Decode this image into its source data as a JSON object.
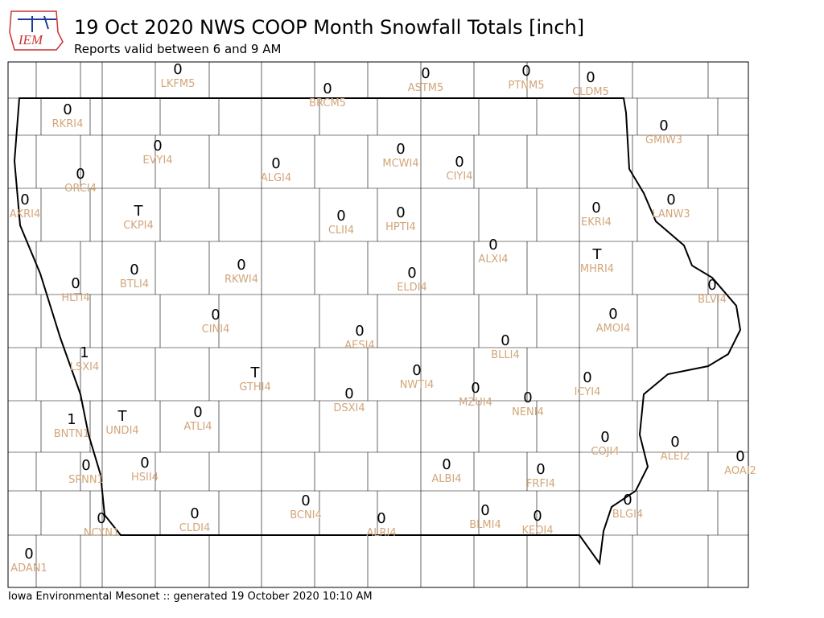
{
  "header": {
    "logo": "IEM",
    "title": "19 Oct 2020 NWS COOP Month Snowfall Totals [inch]",
    "subtitle": "Reports valid between 6 and 9 AM"
  },
  "footer": "Iowa Environmental Mesonet :: generated 19 October 2020 10:10 AM",
  "stations": [
    {
      "value": 0,
      "id": "LKFM5"
    },
    {
      "value": 0,
      "id": "BRCM5"
    },
    {
      "value": 0,
      "id": "ASTM5"
    },
    {
      "value": 0,
      "id": "PTNM5"
    },
    {
      "value": 0,
      "id": "CLDM5"
    },
    {
      "value": 0,
      "id": "RKRI4"
    },
    {
      "value": 0,
      "id": "GMIW3"
    },
    {
      "value": 0,
      "id": "EVYI4"
    },
    {
      "value": 0,
      "id": "MCWI4"
    },
    {
      "value": 0,
      "id": "ALGI4"
    },
    {
      "value": 0,
      "id": "CIYI4"
    },
    {
      "value": 0,
      "id": "ORCI4"
    },
    {
      "value": 0,
      "id": "AKRI4"
    },
    {
      "value": 0,
      "id": "LANW3"
    },
    {
      "value": "T",
      "id": "CKPI4"
    },
    {
      "value": 0,
      "id": "CLII4"
    },
    {
      "value": 0,
      "id": "HPTI4"
    },
    {
      "value": 0,
      "id": "EKRI4"
    },
    {
      "value": 0,
      "id": "ALXI4"
    },
    {
      "value": "T",
      "id": "MHRI4"
    },
    {
      "value": 0,
      "id": "BTLI4"
    },
    {
      "value": 0,
      "id": "RKWI4"
    },
    {
      "value": 0,
      "id": "ELDI4"
    },
    {
      "value": 0,
      "id": "HLTI4"
    },
    {
      "value": 0,
      "id": "BLVI4"
    },
    {
      "value": 0,
      "id": "CINI4"
    },
    {
      "value": 0,
      "id": "AMOI4"
    },
    {
      "value": 0,
      "id": "AESI4"
    },
    {
      "value": 0,
      "id": "BLLI4"
    },
    {
      "value": 1,
      "id": "LSXI4"
    },
    {
      "value": "T",
      "id": "GTHI4"
    },
    {
      "value": 0,
      "id": "NWTI4"
    },
    {
      "value": 0,
      "id": "ICYI4"
    },
    {
      "value": 0,
      "id": "MZUI4"
    },
    {
      "value": 0,
      "id": "DSXI4"
    },
    {
      "value": 0,
      "id": "NENI4"
    },
    {
      "value": "T",
      "id": "UNDI4"
    },
    {
      "value": 0,
      "id": "ATLI4"
    },
    {
      "value": 1,
      "id": "BNTN1"
    },
    {
      "value": 0,
      "id": "COJI4"
    },
    {
      "value": 0,
      "id": "ALEI2"
    },
    {
      "value": 0,
      "id": "AOAI2"
    },
    {
      "value": 0,
      "id": "SPNN1"
    },
    {
      "value": 0,
      "id": "HSII4"
    },
    {
      "value": 0,
      "id": "ALBI4"
    },
    {
      "value": 0,
      "id": "FRFI4"
    },
    {
      "value": 0,
      "id": "BLGI4"
    },
    {
      "value": 0,
      "id": "BCNI4"
    },
    {
      "value": 0,
      "id": "CLDI4"
    },
    {
      "value": 0,
      "id": "BLMI4"
    },
    {
      "value": 0,
      "id": "KEOI4"
    },
    {
      "value": 0,
      "id": "ALRI4"
    },
    {
      "value": 0,
      "id": "NCYN1"
    },
    {
      "value": 0,
      "id": "ADAN1"
    }
  ]
}
